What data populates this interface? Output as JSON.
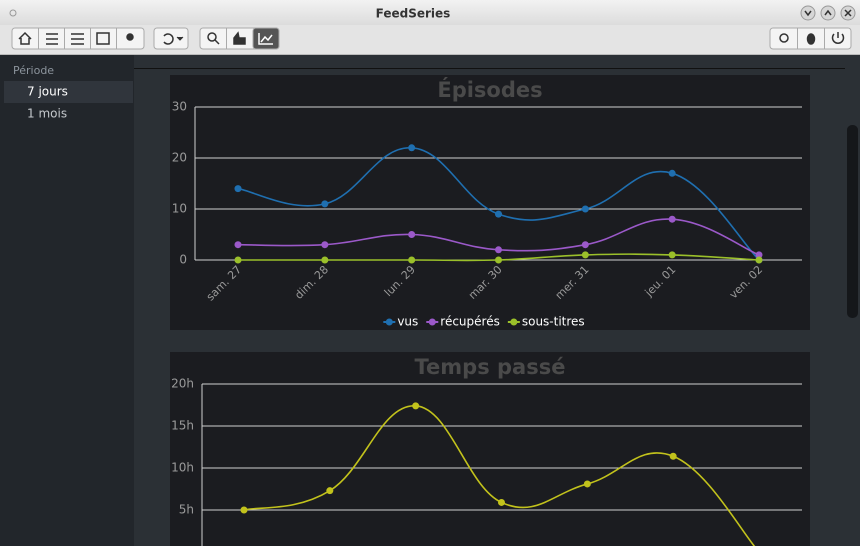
{
  "window": {
    "title": "FeedSeries"
  },
  "sidebar": {
    "heading": "Période",
    "items": [
      "7 jours",
      "1 mois"
    ]
  },
  "chart_data": [
    {
      "type": "line",
      "title": "Épisodes",
      "categories": [
        "sam. 27",
        "dim. 28",
        "lun. 29",
        "mar. 30",
        "mer. 31",
        "jeu. 01",
        "ven. 02"
      ],
      "series": [
        {
          "name": "vus",
          "color": "#1f6fb0",
          "values": [
            14,
            11,
            22,
            9,
            10,
            17,
            0
          ]
        },
        {
          "name": "récupérés",
          "color": "#9b59c9",
          "values": [
            3,
            3,
            5,
            2,
            3,
            8,
            1
          ]
        },
        {
          "name": "sous-titres",
          "color": "#9bc02a",
          "values": [
            0,
            0,
            0,
            0,
            1,
            1,
            0
          ]
        }
      ],
      "ylim": [
        0,
        30
      ],
      "yticks": [
        0,
        10,
        20,
        30
      ],
      "grid": true,
      "legend": "bottom"
    },
    {
      "type": "line",
      "title": "Temps passé",
      "categories": [
        null,
        null,
        null,
        null,
        null,
        null,
        null
      ],
      "series": [
        {
          "color": "#c2c21c",
          "values": [
            5,
            7.3,
            17.4,
            5.9,
            8.1,
            11.4,
            0
          ]
        }
      ],
      "ylim": [
        0,
        20
      ],
      "yticks": [
        {
          "value": 5,
          "label": "5h"
        },
        {
          "value": 10,
          "label": "10h"
        },
        {
          "value": 15,
          "label": "15h"
        },
        {
          "value": 20,
          "label": "20h"
        }
      ],
      "grid": true
    }
  ]
}
